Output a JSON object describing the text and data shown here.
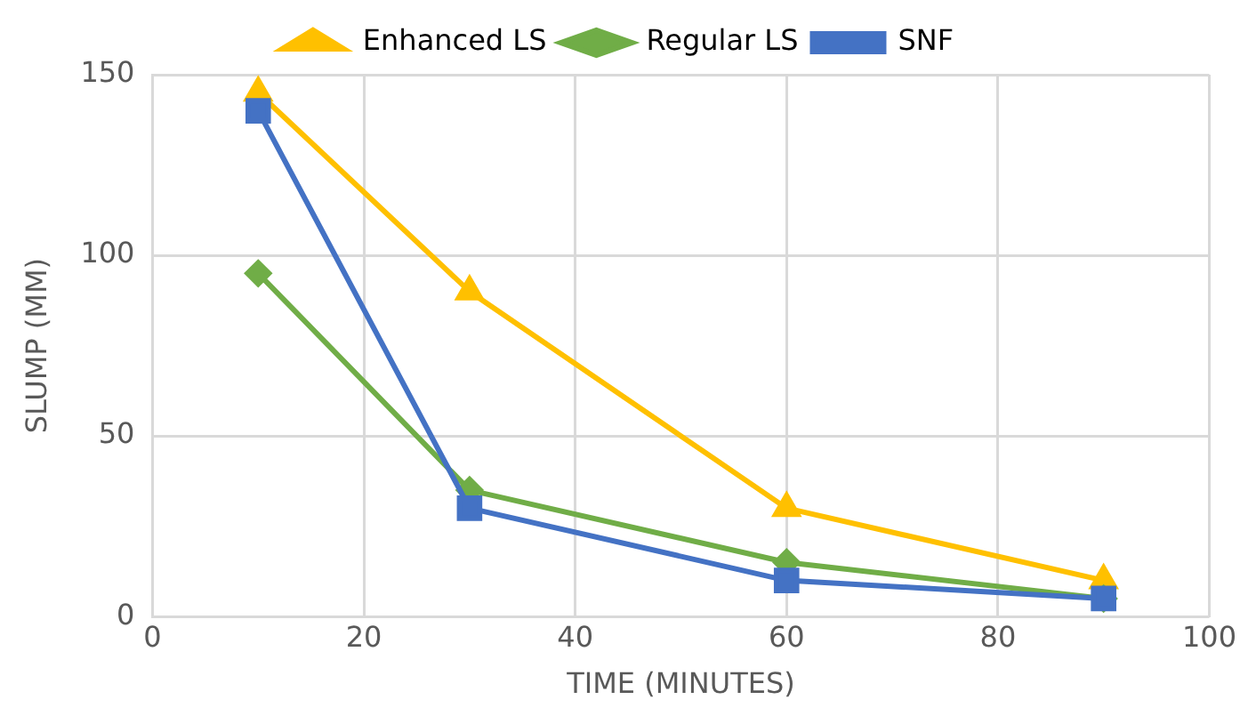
{
  "chart_data": {
    "type": "line",
    "xlabel": "TIME (MINUTES)",
    "ylabel": "SLUMP (MM)",
    "xlim": [
      0,
      100
    ],
    "xticks": [
      0,
      20,
      40,
      60,
      80,
      100
    ],
    "ylim": [
      0,
      150
    ],
    "yticks": [
      0,
      50,
      100,
      150
    ],
    "grid": true,
    "legend": "top",
    "line_style": "solid",
    "series": [
      {
        "name": "Enhanced LS",
        "color": "#ffc000",
        "marker": "triangle",
        "x": [
          10,
          30,
          60,
          90
        ],
        "values": [
          145,
          90,
          30,
          10
        ]
      },
      {
        "name": "Regular LS",
        "color": "#70ad47",
        "marker": "diamond",
        "x": [
          10,
          30,
          60,
          90
        ],
        "values": [
          95,
          35,
          15,
          5
        ]
      },
      {
        "name": "SNF",
        "color": "#4472c4",
        "marker": "square",
        "x": [
          10,
          30,
          60,
          90
        ],
        "values": [
          140,
          30,
          10,
          5
        ]
      }
    ]
  }
}
